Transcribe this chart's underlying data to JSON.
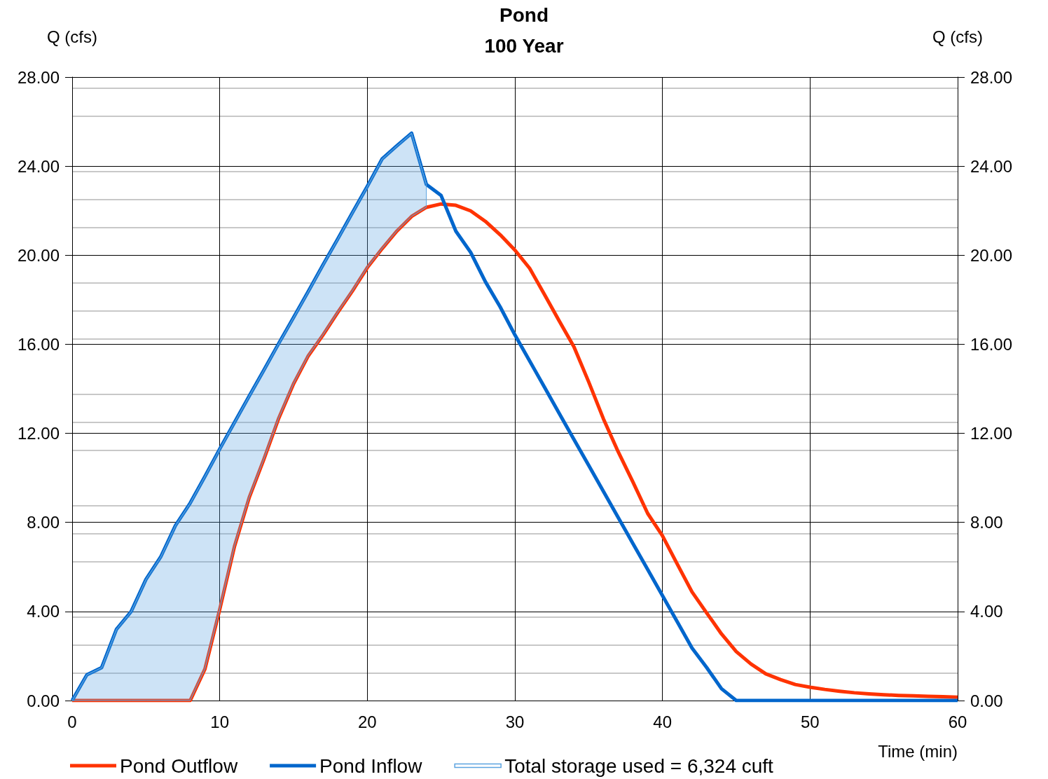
{
  "chart_data": {
    "type": "line",
    "title": "Pond",
    "subtitle": "100 Year",
    "xlabel": "Time (min)",
    "ylabel": "Q (cfs)",
    "y2label": "Q (cfs)",
    "x": [
      0,
      1,
      2,
      3,
      4,
      5,
      6,
      7,
      8,
      9,
      10,
      11,
      12,
      13,
      14,
      15,
      16,
      17,
      18,
      19,
      20,
      21,
      22,
      23,
      24,
      25,
      26,
      27,
      28,
      29,
      30,
      31,
      32,
      33,
      34,
      35,
      36,
      37,
      38,
      39,
      40,
      41,
      42,
      43,
      44,
      45,
      46,
      47,
      48,
      49,
      50,
      51,
      52,
      53,
      54,
      55,
      56,
      57,
      58,
      59,
      60
    ],
    "series": [
      {
        "name": "Pond Outflow",
        "color": "#ff3300",
        "values": [
          0,
          0,
          0,
          0,
          0,
          0,
          0,
          0,
          0,
          1.42,
          4.09,
          6.92,
          9.12,
          10.85,
          12.68,
          14.22,
          15.48,
          16.42,
          17.43,
          18.4,
          19.44,
          20.29,
          21.08,
          21.74,
          22.15,
          22.3,
          22.24,
          21.99,
          21.52,
          20.92,
          20.23,
          19.41,
          18.24,
          17.05,
          15.89,
          14.31,
          12.65,
          11.17,
          9.81,
          8.4,
          7.4,
          6.13,
          4.88,
          3.93,
          2.99,
          2.2,
          1.64,
          1.2,
          0.94,
          0.72,
          0.6,
          0.5,
          0.42,
          0.35,
          0.3,
          0.26,
          0.23,
          0.21,
          0.19,
          0.17,
          0.15
        ]
      },
      {
        "name": "Pond Inflow",
        "color": "#0066cc",
        "values": [
          0,
          1.16,
          1.48,
          3.2,
          4.0,
          5.44,
          6.45,
          7.86,
          8.87,
          10.07,
          11.3,
          12.49,
          13.68,
          14.85,
          16.04,
          17.2,
          18.37,
          19.57,
          20.73,
          21.92,
          23.09,
          24.32,
          24.91,
          25.48,
          23.18,
          22.68,
          21.08,
          20.13,
          18.81,
          17.68,
          16.42,
          15.25,
          14.08,
          12.9,
          11.73,
          10.56,
          9.39,
          8.22,
          7.05,
          5.88,
          4.71,
          3.54,
          2.36,
          1.48,
          0.53,
          0,
          0,
          0,
          0,
          0,
          0,
          0,
          0,
          0,
          0,
          0,
          0,
          0,
          0,
          0,
          0
        ]
      },
      {
        "type": "line",
        "name": "Total storage used = 6,324 cuft",
        "color": "#5ba3e0",
        "x": [
          0,
          1,
          2,
          3,
          4,
          5,
          6,
          7,
          8,
          9,
          10,
          11,
          12,
          13,
          14,
          15,
          16,
          17,
          18,
          19,
          20,
          21,
          22,
          23,
          24
        ],
        "lower": [
          0,
          0,
          0,
          0,
          0,
          0,
          0,
          0,
          0,
          1.42,
          4.09,
          6.92,
          9.12,
          10.85,
          12.68,
          14.22,
          15.48,
          16.42,
          17.43,
          18.4,
          19.44,
          20.29,
          21.08,
          21.74,
          22.15
        ],
        "upper": [
          0,
          1.16,
          1.48,
          3.2,
          4.0,
          5.44,
          6.45,
          7.86,
          8.87,
          10.07,
          11.3,
          12.49,
          13.68,
          14.85,
          16.04,
          17.2,
          18.37,
          19.57,
          20.73,
          21.92,
          23.09,
          24.32,
          24.91,
          25.48,
          23.18
        ],
        "values": [
          0,
          1.16,
          1.48,
          3.2,
          4.0,
          5.44,
          6.45,
          7.86,
          8.87,
          10.07,
          11.3,
          12.49,
          13.68,
          14.85,
          16.04,
          17.2,
          18.37,
          19.57,
          20.73,
          21.92,
          23.09,
          24.32,
          24.91,
          25.48,
          23.18
        ]
      }
    ],
    "xlim": [
      0,
      60
    ],
    "xticks": [
      0,
      10,
      20,
      30,
      40,
      50,
      60
    ],
    "ylim": [
      0,
      28
    ],
    "yticks": [
      {
        "value": 0,
        "label": "0.00"
      },
      {
        "value": 4,
        "label": "4.00"
      },
      {
        "value": 8,
        "label": "8.00"
      },
      {
        "value": 12,
        "label": "12.00"
      },
      {
        "value": 16,
        "label": "16.00"
      },
      {
        "value": 20,
        "label": "20.00"
      },
      {
        "value": 24,
        "label": "24.00"
      },
      {
        "value": 28,
        "label": "28.00"
      }
    ],
    "y2lim": [
      0,
      28
    ],
    "y2ticks": [
      {
        "value": 0,
        "label": "0.00"
      },
      {
        "value": 4,
        "label": "4.00"
      },
      {
        "value": 8,
        "label": "8.00"
      },
      {
        "value": 12,
        "label": "12.00"
      },
      {
        "value": 16,
        "label": "16.00"
      },
      {
        "value": 20,
        "label": "20.00"
      },
      {
        "value": 24,
        "label": "24.00"
      },
      {
        "value": 28,
        "label": "28.00"
      }
    ],
    "grid": true,
    "legend": "bottom",
    "marker": "none",
    "line_style": "solid"
  }
}
